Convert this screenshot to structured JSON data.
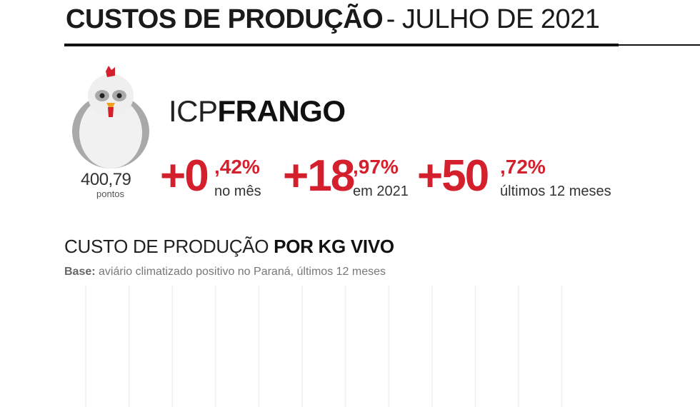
{
  "header": {
    "title_bold": "CUSTOS DE PRODUÇÃO",
    "title_light": "- JULHO DE 2021"
  },
  "index": {
    "name_light": "ICP",
    "name_bold": "FRANGO",
    "points_value": "400,79",
    "points_unit": "pontos",
    "icon": "chicken-icon"
  },
  "stats": [
    {
      "big": "+0",
      "decimal": ",42%",
      "label": "no mês"
    },
    {
      "big": "+18",
      "decimal": ",97%",
      "label": "em 2021"
    },
    {
      "big": "+50",
      "decimal": ",72%",
      "label": "últimos 12 meses"
    }
  ],
  "section": {
    "title_light": "CUSTO DE PRODUÇÃO",
    "title_bold": "POR KG VIVO",
    "base_label": "Base:",
    "base_text": "aviário climatizado positivo no Paraná, últimos 12 meses"
  },
  "colors": {
    "accent_red": "#d4202c",
    "text_dark": "#111111",
    "text_muted": "#777777",
    "gridline": "#f0f0f0"
  },
  "chart_data": {
    "type": "bar",
    "title": "CUSTO DE PRODUÇÃO POR KG VIVO",
    "subtitle": "Base: aviário climatizado positivo no Paraná, últimos 12 meses",
    "categories": [],
    "values": [],
    "grid": true,
    "vertical_gridlines": 12
  }
}
